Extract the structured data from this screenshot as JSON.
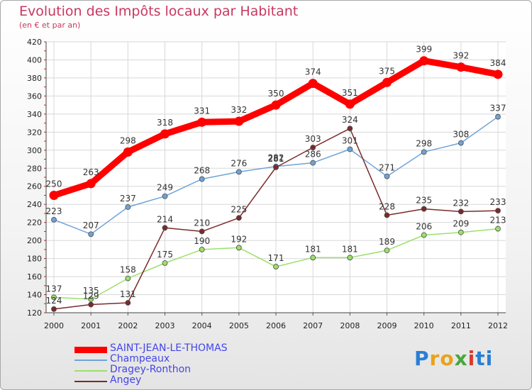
{
  "title": "Evolution des Impôts locaux par Habitant",
  "subtitle": "(en € et par an)",
  "logo": "Proxiti",
  "chart_data": {
    "type": "line",
    "title": "Evolution des Impôts locaux par Habitant",
    "subtitle": "(en € et par an)",
    "xlabel": "",
    "ylabel": "",
    "ylim": [
      120,
      420
    ],
    "yticks": [
      120,
      140,
      160,
      180,
      200,
      220,
      240,
      260,
      280,
      300,
      320,
      340,
      360,
      380,
      400,
      420
    ],
    "grid": true,
    "legend_position": "bottom-left",
    "categories": [
      "2000",
      "2001",
      "2002",
      "2003",
      "2004",
      "2005",
      "2006",
      "2007",
      "2008",
      "2009",
      "2010",
      "2011",
      "2012"
    ],
    "series": [
      {
        "name": "SAINT-JEAN-LE-THOMAS",
        "color": "#ff0000",
        "values": [
          250,
          263,
          298,
          318,
          331,
          332,
          350,
          374,
          351,
          375,
          399,
          392,
          384
        ]
      },
      {
        "name": "Champeaux",
        "color": "#6fa3d8",
        "values": [
          223,
          207,
          237,
          249,
          268,
          276,
          282,
          286,
          301,
          271,
          298,
          308,
          337
        ]
      },
      {
        "name": "Dragey-Ronthon",
        "color": "#9ce06a",
        "values": [
          137,
          135,
          158,
          175,
          190,
          192,
          171,
          181,
          181,
          189,
          206,
          209,
          213
        ]
      },
      {
        "name": "Angey",
        "color": "#7a2a2a",
        "values": [
          124,
          129,
          131,
          214,
          210,
          225,
          281,
          303,
          324,
          228,
          235,
          232,
          233
        ]
      }
    ]
  }
}
